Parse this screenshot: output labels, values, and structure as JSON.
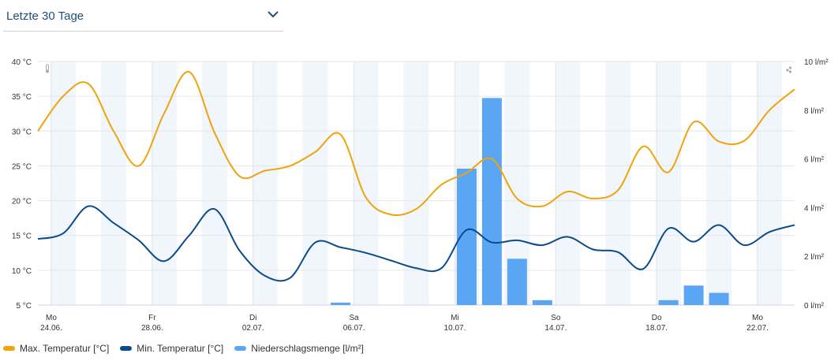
{
  "selector": {
    "label": "Letzte 30 Tage",
    "icon": "chevron-down-icon"
  },
  "colors": {
    "max": "#f0a30a",
    "min": "#0b4a8b",
    "precip": "#5aa6f5",
    "stripe": "#f0f6fc",
    "grid": "#e3e6ea",
    "accent": "#1f4d7a"
  },
  "legend": [
    {
      "label": "Max. Temperatur [°C]",
      "color": "#f0a30a"
    },
    {
      "label": "Min. Temperatur [°C]",
      "color": "#0b4a8b"
    },
    {
      "label": "Niederschlagsmenge [l/m²]",
      "color": "#5aa6f5"
    }
  ],
  "chart_data": {
    "type": "line",
    "days": [
      "24.06.",
      "25.06.",
      "26.06.",
      "27.06.",
      "28.06.",
      "29.06.",
      "30.06.",
      "01.07.",
      "02.07.",
      "03.07.",
      "04.07.",
      "05.07.",
      "06.07.",
      "07.07.",
      "08.07.",
      "09.07.",
      "10.07.",
      "11.07.",
      "12.07.",
      "13.07.",
      "14.07.",
      "15.07.",
      "16.07.",
      "17.07.",
      "18.07.",
      "19.07.",
      "20.07.",
      "21.07.",
      "22.07.",
      "23.07.",
      "24.07."
    ],
    "x_tick_labels": [
      {
        "index": 0,
        "weekday": "Mo",
        "date": "24.06."
      },
      {
        "index": 4,
        "weekday": "Fr",
        "date": "28.06."
      },
      {
        "index": 8,
        "weekday": "Di",
        "date": "02.07."
      },
      {
        "index": 12,
        "weekday": "Sa",
        "date": "06.07."
      },
      {
        "index": 16,
        "weekday": "Mi",
        "date": "10.07."
      },
      {
        "index": 20,
        "weekday": "So",
        "date": "14.07."
      },
      {
        "index": 24,
        "weekday": "Do",
        "date": "18.07."
      },
      {
        "index": 28,
        "weekday": "Mo",
        "date": "22.07."
      }
    ],
    "series": [
      {
        "name": "Max. Temperatur [°C]",
        "axis": "left",
        "type": "line",
        "values": [
          30.0,
          35.0,
          36.8,
          30.0,
          25.0,
          32.5,
          38.5,
          29.8,
          23.5,
          24.3,
          25.0,
          27.0,
          29.5,
          20.5,
          18.0,
          18.8,
          22.3,
          24.0,
          26.0,
          20.3,
          19.2,
          21.3,
          20.3,
          21.5,
          27.8,
          24.1,
          31.3,
          28.5,
          28.6,
          33.0,
          36.0
        ]
      },
      {
        "name": "Min. Temperatur [°C]",
        "axis": "left",
        "type": "line",
        "values": [
          14.5,
          15.3,
          19.2,
          16.8,
          14.3,
          11.3,
          15.0,
          18.8,
          12.8,
          9.2,
          8.9,
          14.0,
          13.3,
          12.5,
          11.4,
          10.3,
          10.3,
          15.8,
          14.0,
          14.3,
          13.6,
          14.8,
          13.0,
          12.6,
          10.2,
          16.0,
          14.1,
          16.5,
          13.6,
          15.5,
          16.5
        ]
      },
      {
        "name": "Niederschlagsmenge [l/m²]",
        "axis": "right",
        "type": "bar",
        "values": [
          0,
          0,
          0,
          0,
          0,
          0,
          0,
          0,
          0,
          0,
          0,
          0,
          0.1,
          0,
          0,
          0,
          0,
          5.6,
          8.5,
          1.9,
          0.2,
          0,
          0,
          0,
          0,
          0.2,
          0.8,
          0.5,
          0,
          0,
          0
        ]
      }
    ],
    "y_left": {
      "min": 5,
      "max": 40,
      "ticks": [
        5,
        10,
        15,
        20,
        25,
        30,
        35,
        40
      ],
      "unit": "°C"
    },
    "y_right": {
      "min": 0,
      "max": 10,
      "ticks": [
        0,
        2,
        4,
        6,
        8,
        10
      ],
      "unit": "l/m²"
    },
    "grid": true,
    "legend_position": "bottom-left"
  }
}
